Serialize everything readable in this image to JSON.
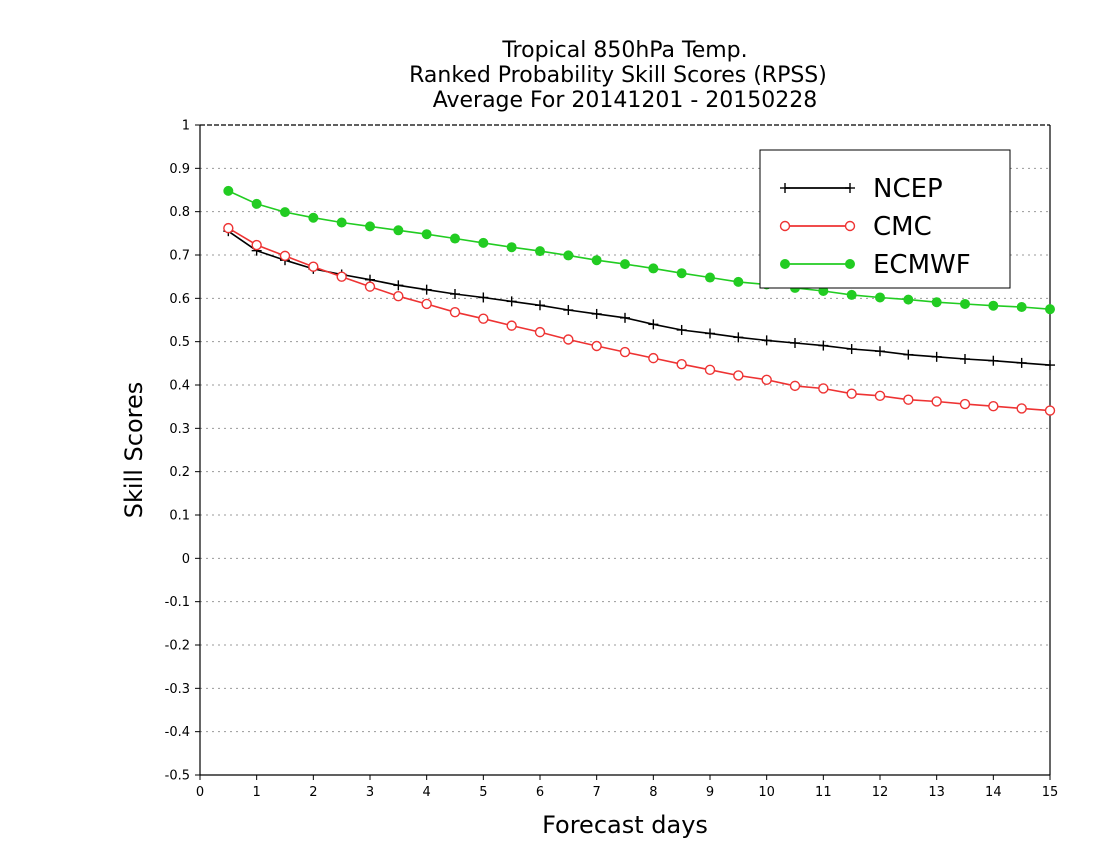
{
  "chart_data": {
    "type": "line",
    "title_lines": [
      "Tropical 850hPa Temp.",
      "Ranked Probability Skill Scores (RPSS)",
      "Average For 20141201 - 20150228"
    ],
    "xlabel": "Forecast days",
    "ylabel": "Skill Scores",
    "xlim": [
      0,
      15
    ],
    "ylim": [
      -0.5,
      1
    ],
    "xticks": [
      "0",
      "1",
      "2",
      "3",
      "4",
      "5",
      "6",
      "7",
      "8",
      "9",
      "10",
      "11",
      "12",
      "13",
      "14",
      "15"
    ],
    "yticks": [
      "-0.5",
      "-0.4",
      "-0.3",
      "-0.2",
      "-0.1",
      "0",
      "0.1",
      "0.2",
      "0.3",
      "0.4",
      "0.5",
      "0.6",
      "0.7",
      "0.8",
      "0.9",
      "1"
    ],
    "grid": true,
    "legend_position": "top-right",
    "x": [
      0.5,
      1,
      1.5,
      2,
      2.5,
      3,
      3.5,
      4,
      4.5,
      5,
      5.5,
      6,
      6.5,
      7,
      7.5,
      8,
      8.5,
      9,
      9.5,
      10,
      10.5,
      11,
      11.5,
      12,
      12.5,
      13,
      13.5,
      14,
      14.5,
      15
    ],
    "series": [
      {
        "name": "NCEP",
        "color": "#000000",
        "marker": "plus",
        "values": [
          0.755,
          0.71,
          0.688,
          0.668,
          0.655,
          0.643,
          0.63,
          0.62,
          0.61,
          0.602,
          0.593,
          0.584,
          0.573,
          0.564,
          0.555,
          0.54,
          0.527,
          0.519,
          0.51,
          0.503,
          0.497,
          0.491,
          0.483,
          0.478,
          0.47,
          0.465,
          0.46,
          0.456,
          0.451,
          0.446
        ]
      },
      {
        "name": "CMC",
        "color": "#ee3333",
        "marker": "open-circle",
        "values": [
          0.762,
          0.723,
          0.698,
          0.673,
          0.65,
          0.627,
          0.605,
          0.587,
          0.568,
          0.553,
          0.537,
          0.522,
          0.505,
          0.49,
          0.476,
          0.462,
          0.448,
          0.435,
          0.422,
          0.412,
          0.398,
          0.392,
          0.38,
          0.375,
          0.366,
          0.362,
          0.356,
          0.351,
          0.346,
          0.341
        ]
      },
      {
        "name": "ECMWF",
        "color": "#22cc22",
        "marker": "filled-circle",
        "values": [
          0.848,
          0.818,
          0.799,
          0.786,
          0.775,
          0.766,
          0.757,
          0.748,
          0.738,
          0.728,
          0.718,
          0.709,
          0.699,
          0.688,
          0.679,
          0.669,
          0.658,
          0.648,
          0.638,
          0.632,
          0.624,
          0.617,
          0.608,
          0.602,
          0.597,
          0.591,
          0.587,
          0.583,
          0.58,
          0.575
        ]
      }
    ]
  }
}
